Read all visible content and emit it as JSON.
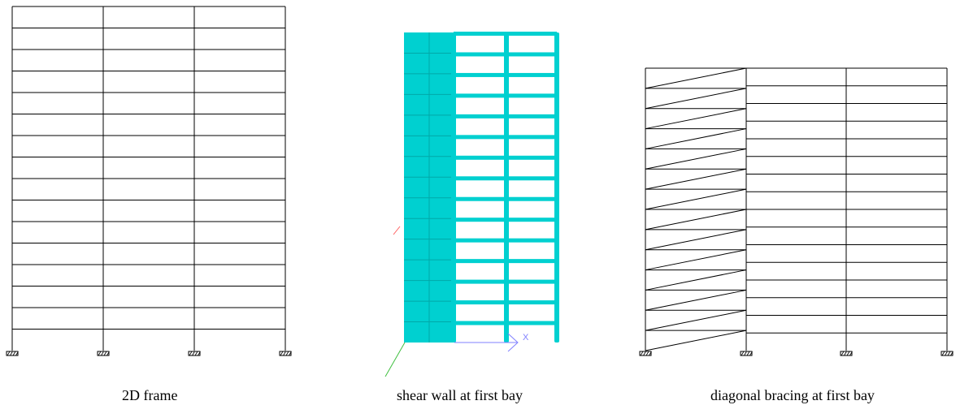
{
  "figures": [
    {
      "id": "frame-2d",
      "caption": "2D frame"
    },
    {
      "id": "shear-wall",
      "caption": "shear wall at first bay",
      "axis_label": "X"
    },
    {
      "id": "diagonal-bracing",
      "caption": "diagonal bracing at first bay"
    }
  ],
  "structure": {
    "stories": 16,
    "bays": 3,
    "braced_stories": 14
  },
  "colors": {
    "line": "#000000",
    "shear_fill": "#00d0d0",
    "shear_dark": "#00a8a8",
    "axis_x": "#8080ff",
    "axis_y": "#40c040",
    "axis_z": "#ff6060"
  }
}
